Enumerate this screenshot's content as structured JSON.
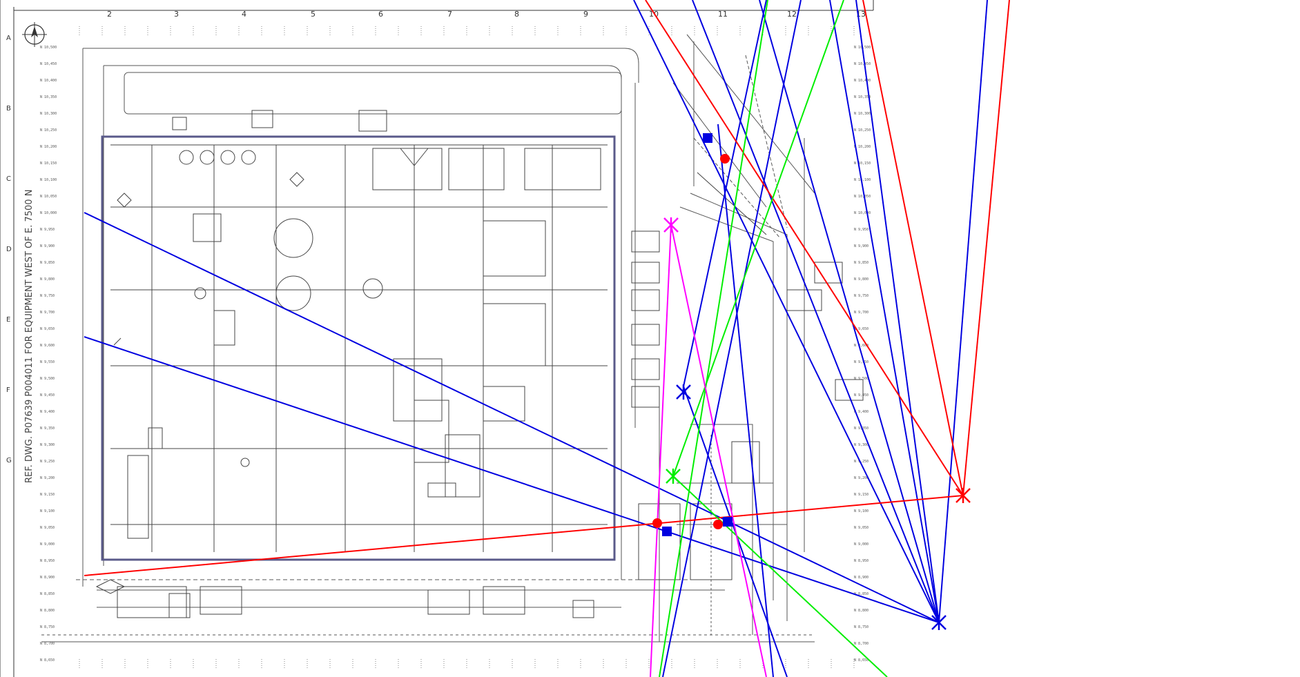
{
  "drawing": {
    "border_numbers": [
      "2",
      "3",
      "4",
      "5",
      "6",
      "7",
      "8",
      "9",
      "10",
      "11",
      "12",
      "13"
    ],
    "border_letters": [
      "A",
      "B",
      "C",
      "D",
      "E",
      "F",
      "G"
    ],
    "vertical_note": "REF. DWG. P07639  P004011  FOR EQUIPMENT WEST OF E. 7500 N",
    "north_arrow": "north-arrow-icon",
    "left_coords": [
      "N 10,500",
      "N 10,450",
      "N 10,400",
      "N 10,350",
      "N 10,300",
      "N 10,250",
      "N 10,200",
      "N 10,150",
      "N 10,100",
      "N 10,050",
      "N 10,000",
      "N 9,950",
      "N 9,900",
      "N 9,850",
      "N 9,800",
      "N 9,750",
      "N 9,700",
      "N 9,650",
      "N 9,600",
      "N 9,550",
      "N 9,500",
      "N 9,450",
      "N 9,400",
      "N 9,350",
      "N 9,300",
      "N 9,250",
      "N 9,200",
      "N 9,150",
      "N 9,100",
      "N 9,050",
      "N 9,000",
      "N 8,950",
      "N 8,900",
      "N 8,850",
      "N 8,800",
      "N 8,750",
      "N 8,700",
      "N 8,650",
      "N 8,600",
      "N 8,550",
      "N 8,500"
    ]
  },
  "overlay": {
    "colors": {
      "blue": "#0000e0",
      "red": "#ff0000",
      "green": "#00ee00",
      "magenta": "#ff00ff",
      "frame": "#5a5a8a"
    }
  }
}
